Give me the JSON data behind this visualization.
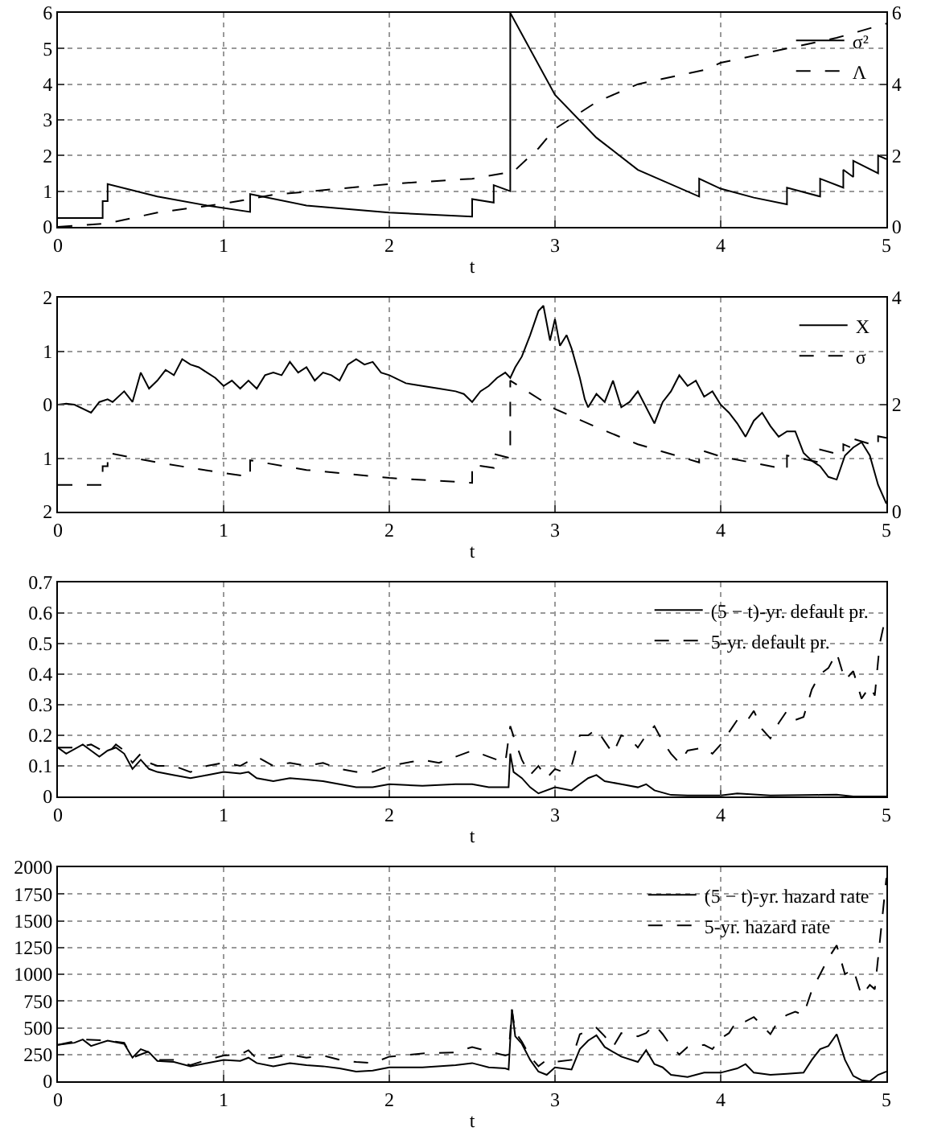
{
  "chart_data": [
    {
      "type": "line",
      "xlabel": "t",
      "xlim": [
        0,
        5
      ],
      "xticks": [
        0,
        1,
        2,
        3,
        4,
        5
      ],
      "ylim": [
        0,
        6
      ],
      "yticks": [
        0,
        1,
        2,
        3,
        4,
        5,
        6
      ],
      "y2lim": [
        0,
        6
      ],
      "y2ticks": [
        0,
        2,
        4,
        6
      ],
      "grid": true,
      "legend": "top right",
      "series": [
        {
          "name": "σ²",
          "color": "#000000",
          "line_style": "solid",
          "x": [
            0,
            0.27,
            0.27,
            0.3,
            0.3,
            0.6,
            0.9,
            1.16,
            1.16,
            1.5,
            2.0,
            2.5,
            2.5,
            2.63,
            2.63,
            2.73,
            2.73,
            3.0,
            3.25,
            3.5,
            3.87,
            3.87,
            4.0,
            4.2,
            4.4,
            4.4,
            4.6,
            4.6,
            4.74,
            4.74,
            4.8,
            4.8,
            4.95,
            4.95,
            5.0
          ],
          "values": [
            0.25,
            0.25,
            0.72,
            0.72,
            1.2,
            0.85,
            0.6,
            0.42,
            0.92,
            0.6,
            0.4,
            0.29,
            0.78,
            0.68,
            1.17,
            1.0,
            6.0,
            3.7,
            2.5,
            1.6,
            0.85,
            1.35,
            1.07,
            0.82,
            0.63,
            1.1,
            0.85,
            1.35,
            1.1,
            1.6,
            1.4,
            1.85,
            1.5,
            2.0,
            1.9
          ]
        },
        {
          "name": "Λ",
          "color": "#000000",
          "line_style": "dashed",
          "axis": "y2",
          "x": [
            0,
            0.3,
            0.6,
            1.0,
            1.3,
            2.0,
            2.5,
            2.75,
            2.9,
            3.0,
            3.25,
            3.5,
            3.9,
            4.0,
            4.3,
            4.4,
            4.7,
            5.0
          ],
          "values": [
            0,
            0.1,
            0.4,
            0.65,
            0.9,
            1.2,
            1.35,
            1.55,
            2.2,
            2.75,
            3.5,
            4.0,
            4.4,
            4.6,
            4.9,
            5.0,
            5.3,
            5.7
          ]
        }
      ]
    },
    {
      "type": "line",
      "xlabel": "t",
      "xlim": [
        0,
        5
      ],
      "xticks": [
        0,
        1,
        2,
        3,
        4,
        5
      ],
      "ylim": [
        -2,
        2
      ],
      "yticks": [
        {
          "value": -2,
          "label": "2"
        },
        {
          "value": -1,
          "label": "1"
        },
        0,
        1,
        2
      ],
      "y2lim": [
        0,
        4
      ],
      "y2ticks": [
        0,
        2,
        4
      ],
      "grid": true,
      "legend": "top right",
      "series": [
        {
          "name": "X",
          "color": "#000000",
          "line_style": "solid",
          "x": [
            0,
            0.05,
            0.1,
            0.2,
            0.25,
            0.3,
            0.33,
            0.4,
            0.45,
            0.5,
            0.55,
            0.6,
            0.65,
            0.7,
            0.75,
            0.8,
            0.85,
            0.9,
            0.95,
            1.0,
            1.05,
            1.1,
            1.15,
            1.2,
            1.25,
            1.3,
            1.35,
            1.4,
            1.45,
            1.5,
            1.55,
            1.6,
            1.65,
            1.7,
            1.75,
            1.8,
            1.85,
            1.9,
            1.95,
            2.0,
            2.1,
            2.2,
            2.3,
            2.4,
            2.45,
            2.5,
            2.55,
            2.6,
            2.65,
            2.7,
            2.73,
            2.76,
            2.8,
            2.85,
            2.9,
            2.93,
            2.97,
            3.0,
            3.03,
            3.07,
            3.1,
            3.15,
            3.18,
            3.2,
            3.25,
            3.3,
            3.35,
            3.4,
            3.45,
            3.5,
            3.55,
            3.6,
            3.65,
            3.7,
            3.75,
            3.8,
            3.85,
            3.9,
            3.95,
            4.0,
            4.05,
            4.1,
            4.15,
            4.2,
            4.25,
            4.3,
            4.35,
            4.4,
            4.45,
            4.5,
            4.55,
            4.6,
            4.65,
            4.7,
            4.75,
            4.8,
            4.85,
            4.9,
            4.95,
            5.0
          ],
          "values": [
            0,
            0.02,
            0,
            -0.15,
            0.05,
            0.1,
            0.05,
            0.25,
            0.05,
            0.6,
            0.3,
            0.45,
            0.65,
            0.55,
            0.85,
            0.75,
            0.7,
            0.6,
            0.5,
            0.35,
            0.45,
            0.3,
            0.45,
            0.3,
            0.55,
            0.6,
            0.55,
            0.8,
            0.6,
            0.7,
            0.45,
            0.6,
            0.55,
            0.45,
            0.75,
            0.85,
            0.75,
            0.8,
            0.6,
            0.55,
            0.4,
            0.35,
            0.3,
            0.25,
            0.2,
            0.05,
            0.25,
            0.35,
            0.5,
            0.6,
            0.5,
            0.7,
            0.9,
            1.3,
            1.75,
            1.85,
            1.2,
            1.6,
            1.1,
            1.3,
            1.05,
            0.5,
            0.1,
            -0.05,
            0.2,
            0.05,
            0.45,
            -0.05,
            0.05,
            0.25,
            -0.05,
            -0.35,
            0.05,
            0.25,
            0.55,
            0.35,
            0.45,
            0.15,
            0.25,
            0,
            -0.15,
            -0.35,
            -0.6,
            -0.3,
            -0.15,
            -0.4,
            -0.6,
            -0.5,
            -0.5,
            -0.9,
            -1.05,
            -1.15,
            -1.35,
            -1.4,
            -0.95,
            -0.8,
            -0.7,
            -0.95,
            -1.5,
            -1.85
          ]
        },
        {
          "name": "σ",
          "color": "#000000",
          "line_style": "dashed",
          "axis": "y2",
          "x": [
            0,
            0.27,
            0.27,
            0.3,
            0.3,
            0.6,
            0.9,
            1.16,
            1.16,
            1.5,
            2.0,
            2.5,
            2.5,
            2.63,
            2.63,
            2.73,
            2.73,
            3.0,
            3.25,
            3.5,
            3.87,
            3.87,
            4.0,
            4.2,
            4.4,
            4.4,
            4.6,
            4.6,
            4.74,
            4.74,
            4.8,
            4.8,
            4.95,
            4.95,
            5.0
          ],
          "values": [
            0.5,
            0.5,
            0.85,
            0.85,
            1.1,
            0.92,
            0.77,
            0.65,
            0.96,
            0.78,
            0.63,
            0.54,
            0.88,
            0.82,
            1.08,
            1.0,
            2.45,
            1.92,
            1.58,
            1.26,
            0.92,
            1.16,
            1.03,
            0.91,
            0.79,
            1.05,
            0.92,
            1.16,
            1.05,
            1.26,
            1.18,
            1.36,
            1.22,
            1.41,
            1.38
          ]
        }
      ]
    },
    {
      "type": "line",
      "xlabel": "t",
      "xlim": [
        0,
        5
      ],
      "xticks": [
        0,
        1,
        2,
        3,
        4,
        5
      ],
      "ylim": [
        0,
        0.7
      ],
      "yticks": [
        0,
        0.1,
        0.2,
        0.3,
        0.4,
        0.5,
        0.6,
        0.7
      ],
      "grid": true,
      "legend": "top right",
      "series": [
        {
          "name": "(5 − t)-yr. default pr.",
          "color": "#000000",
          "line_style": "solid",
          "x": [
            0,
            0.05,
            0.15,
            0.2,
            0.25,
            0.3,
            0.35,
            0.4,
            0.45,
            0.5,
            0.55,
            0.6,
            0.7,
            0.8,
            0.9,
            1.0,
            1.1,
            1.15,
            1.2,
            1.3,
            1.4,
            1.5,
            1.6,
            1.7,
            1.8,
            1.9,
            2.0,
            2.2,
            2.4,
            2.5,
            2.6,
            2.72,
            2.73,
            2.75,
            2.8,
            2.85,
            2.9,
            3.0,
            3.1,
            3.15,
            3.2,
            3.25,
            3.3,
            3.4,
            3.5,
            3.55,
            3.6,
            3.7,
            3.8,
            4.0,
            4.1,
            4.3,
            4.6,
            4.7,
            4.8,
            5.0
          ],
          "values": [
            0.16,
            0.14,
            0.17,
            0.15,
            0.13,
            0.15,
            0.16,
            0.14,
            0.09,
            0.12,
            0.09,
            0.08,
            0.07,
            0.06,
            0.07,
            0.08,
            0.075,
            0.08,
            0.06,
            0.05,
            0.06,
            0.055,
            0.05,
            0.04,
            0.03,
            0.03,
            0.04,
            0.035,
            0.04,
            0.04,
            0.03,
            0.03,
            0.14,
            0.08,
            0.06,
            0.03,
            0.01,
            0.03,
            0.02,
            0.04,
            0.06,
            0.07,
            0.05,
            0.04,
            0.03,
            0.04,
            0.02,
            0.005,
            0.003,
            0.003,
            0.01,
            0.003,
            0.005,
            0.006,
            0,
            0
          ]
        },
        {
          "name": "5-yr. default pr.",
          "color": "#000000",
          "line_style": "dashed",
          "x": [
            0,
            0.1,
            0.2,
            0.3,
            0.35,
            0.4,
            0.45,
            0.5,
            0.55,
            0.6,
            0.7,
            0.8,
            0.9,
            1.0,
            1.1,
            1.2,
            1.3,
            1.4,
            1.5,
            1.6,
            1.7,
            1.8,
            1.9,
            2.0,
            2.1,
            2.2,
            2.3,
            2.4,
            2.5,
            2.6,
            2.7,
            2.73,
            2.76,
            2.8,
            2.85,
            2.9,
            2.95,
            3.0,
            3.05,
            3.1,
            3.15,
            3.2,
            3.25,
            3.3,
            3.35,
            3.4,
            3.45,
            3.5,
            3.55,
            3.6,
            3.65,
            3.7,
            3.75,
            3.8,
            3.9,
            3.95,
            4.0,
            4.05,
            4.1,
            4.15,
            4.2,
            4.25,
            4.3,
            4.35,
            4.4,
            4.45,
            4.5,
            4.55,
            4.6,
            4.65,
            4.7,
            4.75,
            4.8,
            4.85,
            4.9,
            4.93,
            4.96,
            5.0
          ],
          "values": [
            0.16,
            0.16,
            0.17,
            0.14,
            0.17,
            0.15,
            0.11,
            0.14,
            0.11,
            0.1,
            0.1,
            0.08,
            0.1,
            0.11,
            0.1,
            0.13,
            0.1,
            0.11,
            0.1,
            0.11,
            0.09,
            0.08,
            0.08,
            0.1,
            0.11,
            0.12,
            0.11,
            0.13,
            0.15,
            0.13,
            0.11,
            0.23,
            0.18,
            0.12,
            0.07,
            0.1,
            0.06,
            0.09,
            0.08,
            0.1,
            0.2,
            0.2,
            0.22,
            0.18,
            0.14,
            0.2,
            0.19,
            0.16,
            0.2,
            0.23,
            0.18,
            0.14,
            0.11,
            0.15,
            0.16,
            0.14,
            0.17,
            0.21,
            0.25,
            0.24,
            0.28,
            0.22,
            0.19,
            0.24,
            0.28,
            0.25,
            0.26,
            0.35,
            0.4,
            0.42,
            0.47,
            0.38,
            0.41,
            0.32,
            0.36,
            0.33,
            0.5,
            0.6
          ]
        }
      ]
    },
    {
      "type": "line",
      "xlabel": "t",
      "xlim": [
        0,
        5
      ],
      "xticks": [
        0,
        1,
        2,
        3,
        4,
        5
      ],
      "ylim": [
        0,
        2000
      ],
      "yticks": [
        0,
        250,
        500,
        750,
        1000,
        1250,
        1500,
        1750,
        2000
      ],
      "grid": true,
      "legend": "top right",
      "series": [
        {
          "name": "(5 − t)-yr. hazard rate",
          "color": "#000000",
          "line_style": "solid",
          "x": [
            0,
            0.1,
            0.15,
            0.2,
            0.3,
            0.4,
            0.45,
            0.5,
            0.55,
            0.6,
            0.7,
            0.8,
            0.9,
            1.0,
            1.1,
            1.15,
            1.2,
            1.3,
            1.4,
            1.5,
            1.6,
            1.7,
            1.8,
            1.9,
            2.0,
            2.2,
            2.4,
            2.5,
            2.6,
            2.7,
            2.72,
            2.74,
            2.76,
            2.8,
            2.85,
            2.9,
            2.95,
            3.0,
            3.1,
            3.15,
            3.2,
            3.25,
            3.3,
            3.4,
            3.5,
            3.55,
            3.6,
            3.65,
            3.7,
            3.8,
            3.9,
            4.0,
            4.1,
            4.15,
            4.2,
            4.3,
            4.4,
            4.5,
            4.55,
            4.6,
            4.65,
            4.7,
            4.75,
            4.8,
            4.85,
            4.9,
            4.95,
            5.0
          ],
          "values": [
            340,
            360,
            390,
            330,
            380,
            350,
            220,
            300,
            270,
            190,
            180,
            140,
            170,
            200,
            190,
            220,
            170,
            140,
            170,
            150,
            140,
            120,
            90,
            100,
            130,
            130,
            150,
            170,
            130,
            120,
            110,
            670,
            420,
            350,
            200,
            90,
            60,
            130,
            110,
            300,
            380,
            430,
            320,
            230,
            180,
            290,
            160,
            130,
            60,
            40,
            80,
            80,
            120,
            160,
            80,
            60,
            70,
            80,
            200,
            300,
            330,
            440,
            200,
            50,
            10,
            0,
            60,
            90
          ]
        },
        {
          "name": "5-yr. hazard rate",
          "color": "#000000",
          "line_style": "dashed",
          "x": [
            0,
            0.15,
            0.3,
            0.4,
            0.45,
            0.55,
            0.6,
            0.7,
            0.8,
            0.9,
            1.0,
            1.1,
            1.15,
            1.2,
            1.3,
            1.4,
            1.5,
            1.6,
            1.7,
            1.8,
            1.9,
            2.0,
            2.2,
            2.4,
            2.5,
            2.6,
            2.7,
            2.72,
            2.74,
            2.76,
            2.8,
            2.85,
            2.9,
            2.95,
            3.0,
            3.1,
            3.15,
            3.2,
            3.25,
            3.3,
            3.35,
            3.4,
            3.5,
            3.55,
            3.6,
            3.65,
            3.7,
            3.75,
            3.8,
            3.9,
            3.95,
            4.0,
            4.05,
            4.1,
            4.15,
            4.2,
            4.25,
            4.3,
            4.35,
            4.4,
            4.45,
            4.5,
            4.55,
            4.6,
            4.65,
            4.7,
            4.75,
            4.8,
            4.85,
            4.9,
            4.93,
            4.96,
            5.0
          ],
          "values": [
            340,
            390,
            380,
            360,
            220,
            280,
            200,
            200,
            150,
            200,
            240,
            250,
            290,
            210,
            220,
            250,
            220,
            240,
            200,
            180,
            170,
            230,
            260,
            270,
            320,
            280,
            240,
            250,
            670,
            460,
            370,
            230,
            140,
            200,
            180,
            200,
            440,
            470,
            500,
            420,
            320,
            450,
            420,
            450,
            530,
            440,
            330,
            250,
            320,
            340,
            300,
            400,
            450,
            570,
            560,
            600,
            520,
            440,
            570,
            620,
            650,
            620,
            850,
            1000,
            1150,
            1270,
            1000,
            1050,
            800,
            900,
            860,
            1300,
            1900
          ]
        }
      ]
    }
  ]
}
